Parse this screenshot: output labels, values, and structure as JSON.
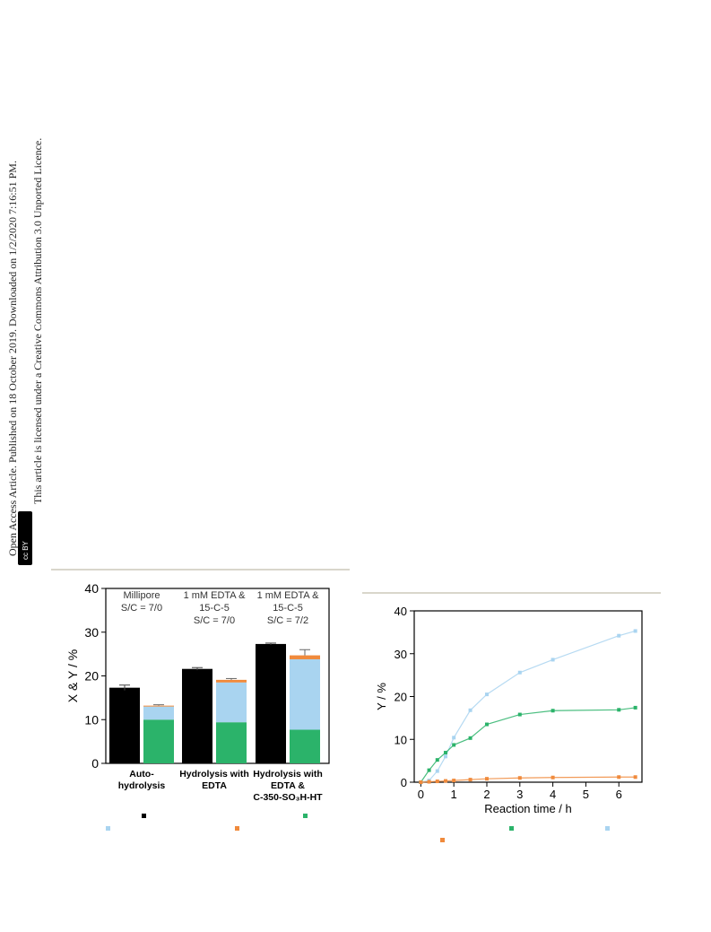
{
  "sidebar": {
    "line1": "Open Access Article. Published on 18 October 2019. Downloaded on 1/2/2020 7:16:51 PM.",
    "line2": "This article is licensed under a Creative Commons Attribution 3.0 Unported Licence.",
    "badge": "cc BY"
  },
  "colors": {
    "black": "#000000",
    "orange": "#f08a3c",
    "light_blue": "#a9d4f0",
    "green": "#2bb36a",
    "rule": "#d9d6cb"
  },
  "chart_data": [
    {
      "type": "bar",
      "ylabel": "X & Y / %",
      "ylim": [
        0,
        40
      ],
      "yticks": [
        0,
        10,
        20,
        30,
        40
      ],
      "categories": [
        {
          "lines": [
            "Auto-",
            "hydrolysis"
          ]
        },
        {
          "lines": [
            "Hydrolysis with",
            "EDTA"
          ]
        },
        {
          "lines": [
            "Hydrolysis with",
            "EDTA &",
            "C-350-SO₃H-HT"
          ]
        }
      ],
      "annotations": [
        [
          "Millipore",
          "S/C = 7/0"
        ],
        [
          "1 mM EDTA &",
          "15-C-5",
          "S/C = 7/0"
        ],
        [
          "1 mM EDTA &",
          "15-C-5",
          "S/C = 7/2"
        ]
      ],
      "series_black": {
        "values": [
          17.3,
          21.6,
          27.3
        ],
        "errors": [
          0.6,
          0.3,
          0.2
        ]
      },
      "stacked": {
        "green": [
          10.0,
          9.4,
          7.7
        ],
        "light_blue": [
          3.0,
          9.1,
          16.1
        ],
        "orange": [
          0.2,
          0.6,
          0.9
        ],
        "errors": [
          0.2,
          0.3,
          1.3
        ]
      }
    },
    {
      "type": "line",
      "ylabel": "Y / %",
      "xlabel": "Reaction time / h",
      "xlim": [
        -0.2,
        6.7
      ],
      "ylim": [
        0,
        40
      ],
      "xticks": [
        0,
        1,
        2,
        3,
        4,
        5,
        6
      ],
      "yticks": [
        0,
        10,
        20,
        30,
        40
      ],
      "series": [
        {
          "color": "light_blue",
          "x": [
            0,
            0.25,
            0.5,
            0.75,
            1,
            1.5,
            2,
            3,
            4,
            6,
            6.5
          ],
          "y": [
            0,
            0.4,
            2.6,
            6.0,
            10.4,
            16.8,
            20.5,
            25.6,
            28.6,
            34.2,
            35.3
          ]
        },
        {
          "color": "green",
          "x": [
            0,
            0.25,
            0.5,
            0.75,
            1,
            1.5,
            2,
            3,
            4,
            6,
            6.5
          ],
          "y": [
            0,
            2.8,
            5.2,
            6.9,
            8.7,
            10.3,
            13.5,
            15.8,
            16.7,
            16.9,
            17.4
          ]
        },
        {
          "color": "orange",
          "x": [
            0,
            0.25,
            0.5,
            0.75,
            1,
            1.5,
            2,
            3,
            4,
            6,
            6.5
          ],
          "y": [
            0,
            0.1,
            0.2,
            0.3,
            0.4,
            0.6,
            0.8,
            1.0,
            1.1,
            1.2,
            1.2
          ]
        }
      ]
    }
  ]
}
